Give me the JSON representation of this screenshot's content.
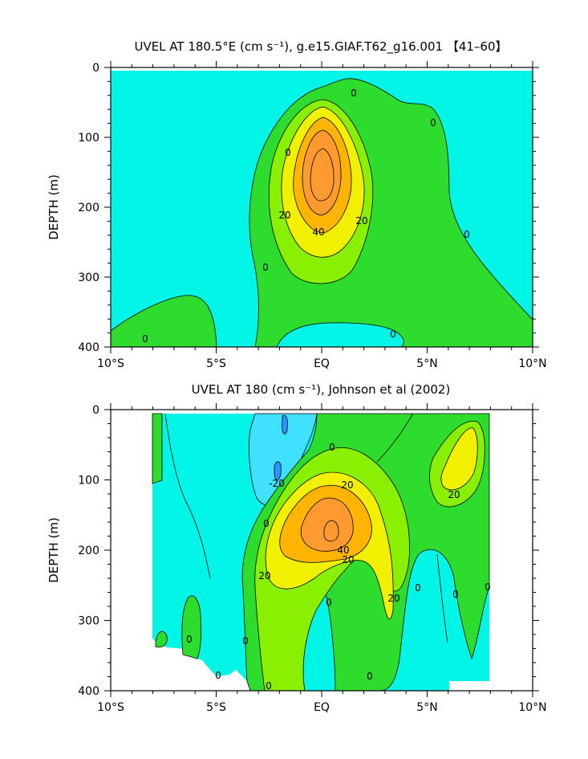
{
  "chart_data": [
    {
      "type": "contour",
      "title": "UVEL AT 180.5°E (cm s⁻¹), g.e15.GIAF.T62_g16.001 【41–60】",
      "ylabel": "DEPTH (m)",
      "xlabel": "",
      "x_tick_labels": [
        "10°S",
        "5°S",
        "EQ",
        "5°N",
        "10°N"
      ],
      "x_ticks": [
        -10,
        -5,
        0,
        5,
        10
      ],
      "xlim": [
        -10,
        10
      ],
      "y_tick_labels": [
        "0",
        "100",
        "200",
        "300",
        "400"
      ],
      "y_ticks": [
        0,
        100,
        200,
        300,
        400
      ],
      "ylim": [
        400,
        0
      ],
      "contour_interval": 10,
      "fill_levels": [
        -20,
        0,
        10,
        20,
        30,
        40,
        50
      ],
      "fill_colors": [
        "#00f5e6",
        "#2edc2e",
        "#88f000",
        "#f0f000",
        "#ffb400",
        "#ff9a30"
      ],
      "core": {
        "lat": 0.0,
        "depth": 160,
        "max_speed": 55
      },
      "contour_labels": [
        {
          "text": "0",
          "lat": -8.3,
          "depth": 385
        },
        {
          "text": "0",
          "lat": -1.6,
          "depth": 120
        },
        {
          "text": "0",
          "lat": 1.5,
          "depth": 35
        },
        {
          "text": "0",
          "lat": 5.3,
          "depth": 80
        },
        {
          "text": "0",
          "lat": 6.9,
          "depth": 235
        },
        {
          "text": "0",
          "lat": -2.6,
          "depth": 285
        },
        {
          "text": "0",
          "lat": 3.4,
          "depth": 380
        },
        {
          "text": "20",
          "lat": -1.7,
          "depth": 210
        },
        {
          "text": "20",
          "lat": 1.9,
          "depth": 220
        },
        {
          "text": "40",
          "lat": -0.2,
          "depth": 235
        }
      ]
    },
    {
      "type": "contour",
      "title": "UVEL AT 180 (cm s⁻¹), Johnson et al (2002)",
      "ylabel": "DEPTH (m)",
      "xlabel": "",
      "x_tick_labels": [
        "10°S",
        "5°S",
        "EQ",
        "5°N",
        "10°N"
      ],
      "x_ticks": [
        -10,
        -5,
        0,
        5,
        10
      ],
      "xlim": [
        -10,
        10
      ],
      "y_tick_labels": [
        "0",
        "100",
        "200",
        "300",
        "400"
      ],
      "y_ticks": [
        0,
        100,
        200,
        300,
        400
      ],
      "ylim": [
        400,
        0
      ],
      "data_lat_range": [
        -8,
        8
      ],
      "contour_interval": 10,
      "fill_levels": [
        -30,
        -20,
        -10,
        0,
        10,
        20,
        30,
        40,
        50
      ],
      "fill_colors": [
        "#2b95ff",
        "#40e0ff",
        "#00f5e6",
        "#2edc2e",
        "#88f000",
        "#f0f000",
        "#ffb400",
        "#ff9a30"
      ],
      "core": {
        "lat": 0.5,
        "depth": 170,
        "max_speed": 55
      },
      "secondary_maxima": [
        {
          "lat": 6.3,
          "depth": 100,
          "speed": 25
        }
      ],
      "contour_labels": [
        {
          "text": "-20",
          "lat": -2.2,
          "depth": 110
        },
        {
          "text": "0",
          "lat": 0.5,
          "depth": 55
        },
        {
          "text": "20",
          "lat": 1.2,
          "depth": 110
        },
        {
          "text": "0",
          "lat": -2.6,
          "depth": 160
        },
        {
          "text": "40",
          "lat": 1.0,
          "depth": 197
        },
        {
          "text": "20",
          "lat": 1.2,
          "depth": 210
        },
        {
          "text": "20",
          "lat": -2.7,
          "depth": 235
        },
        {
          "text": "20",
          "lat": 3.4,
          "depth": 265
        },
        {
          "text": "0",
          "lat": 0.4,
          "depth": 275
        },
        {
          "text": "0",
          "lat": 4.8,
          "depth": 255
        },
        {
          "text": "0",
          "lat": 6.3,
          "depth": 262
        },
        {
          "text": "0",
          "lat": 7.9,
          "depth": 255
        },
        {
          "text": "0",
          "lat": -3.6,
          "depth": 330
        },
        {
          "text": "0",
          "lat": -6.3,
          "depth": 330
        },
        {
          "text": "0",
          "lat": -4.9,
          "depth": 380
        },
        {
          "text": "0",
          "lat": -2.4,
          "depth": 395
        },
        {
          "text": "0",
          "lat": 2.2,
          "depth": 380
        },
        {
          "text": "20",
          "lat": 6.0,
          "depth": 120
        }
      ]
    }
  ]
}
